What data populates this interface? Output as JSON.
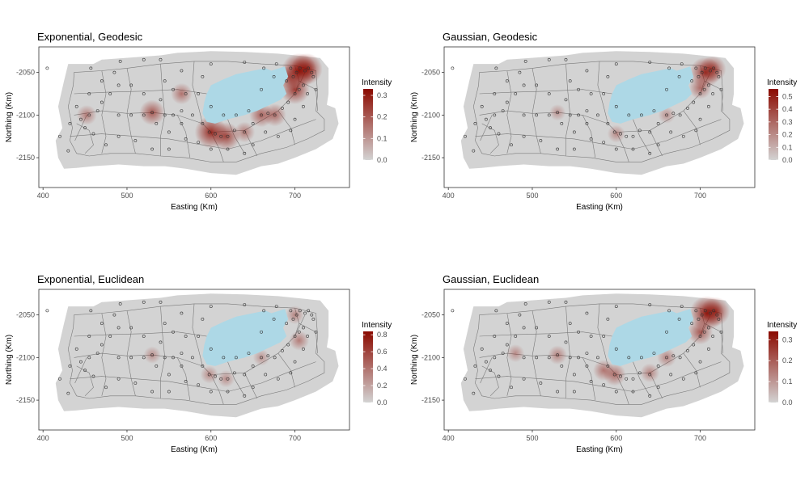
{
  "chart_data": [
    {
      "type": "heatmap",
      "title": "Exponential, Geodesic",
      "xlabel": "Easting (Km)",
      "ylabel": "Northing (Km)",
      "xlim": [
        395,
        765
      ],
      "ylim": [
        -2185,
        -2020
      ],
      "x_ticks": [
        400,
        500,
        600,
        700
      ],
      "y_ticks": [
        -2050,
        -2100,
        -2150
      ],
      "legend": {
        "title": "Intensity",
        "ticks": [
          0.0,
          0.1,
          0.2,
          0.3
        ],
        "tick_labels": [
          "0.0",
          "0.1",
          "0.2",
          "0.3"
        ],
        "max": 0.33,
        "position": "right"
      },
      "hotspots": [
        {
          "x": 705,
          "y": -2048,
          "v": 0.3
        },
        {
          "x": 714,
          "y": -2046,
          "v": 0.25
        },
        {
          "x": 700,
          "y": -2070,
          "v": 0.22
        },
        {
          "x": 600,
          "y": -2120,
          "v": 0.26
        },
        {
          "x": 618,
          "y": -2125,
          "v": 0.2
        },
        {
          "x": 530,
          "y": -2097,
          "v": 0.16
        },
        {
          "x": 660,
          "y": -2100,
          "v": 0.14
        },
        {
          "x": 676,
          "y": -2100,
          "v": 0.12
        },
        {
          "x": 565,
          "y": -2075,
          "v": 0.1
        },
        {
          "x": 452,
          "y": -2100,
          "v": 0.08
        },
        {
          "x": 640,
          "y": -2120,
          "v": 0.09
        },
        {
          "x": 693,
          "y": -2055,
          "v": 0.14
        }
      ]
    },
    {
      "type": "heatmap",
      "title": "Gaussian, Geodesic",
      "xlabel": "Easting (Km)",
      "ylabel": "Northing (Km)",
      "xlim": [
        395,
        765
      ],
      "ylim": [
        -2185,
        -2020
      ],
      "x_ticks": [
        400,
        500,
        600,
        700
      ],
      "y_ticks": [
        -2050,
        -2100,
        -2150
      ],
      "legend": {
        "title": "Intensity",
        "ticks": [
          0.0,
          0.1,
          0.2,
          0.3,
          0.4,
          0.5
        ],
        "tick_labels": [
          "0.0",
          "0.1",
          "0.2",
          "0.3",
          "0.4",
          "0.5"
        ],
        "max": 0.56,
        "position": "right"
      },
      "hotspots": [
        {
          "x": 706,
          "y": -2050,
          "v": 0.4
        },
        {
          "x": 715,
          "y": -2046,
          "v": 0.3
        },
        {
          "x": 700,
          "y": -2068,
          "v": 0.2
        },
        {
          "x": 600,
          "y": -2122,
          "v": 0.08
        },
        {
          "x": 660,
          "y": -2100,
          "v": 0.06
        },
        {
          "x": 530,
          "y": -2097,
          "v": 0.05
        }
      ]
    },
    {
      "type": "heatmap",
      "title": "Exponential, Euclidean",
      "xlabel": "Easting (Km)",
      "ylabel": "Northing (Km)",
      "xlim": [
        395,
        765
      ],
      "ylim": [
        -2185,
        -2020
      ],
      "x_ticks": [
        400,
        500,
        600,
        700
      ],
      "y_ticks": [
        -2050,
        -2100,
        -2150
      ],
      "legend": {
        "title": "Intensity",
        "ticks": [
          0.0,
          0.2,
          0.4,
          0.6,
          0.8
        ],
        "tick_labels": [
          "0.0",
          "0.2",
          "0.4",
          "0.6",
          "0.8"
        ],
        "max": 0.84,
        "position": "right"
      },
      "hotspots": [
        {
          "x": 700,
          "y": -2050,
          "v": 0.15
        },
        {
          "x": 598,
          "y": -2120,
          "v": 0.12
        },
        {
          "x": 618,
          "y": -2125,
          "v": 0.1
        },
        {
          "x": 530,
          "y": -2097,
          "v": 0.1
        },
        {
          "x": 660,
          "y": -2100,
          "v": 0.08
        },
        {
          "x": 705,
          "y": -2080,
          "v": 0.2
        }
      ]
    },
    {
      "type": "heatmap",
      "title": "Gaussian, Euclidean",
      "xlabel": "Easting (Km)",
      "ylabel": "Northing (Km)",
      "xlim": [
        395,
        765
      ],
      "ylim": [
        -2185,
        -2020
      ],
      "x_ticks": [
        400,
        500,
        600,
        700
      ],
      "y_ticks": [
        -2050,
        -2100,
        -2150
      ],
      "legend": {
        "title": "Intensity",
        "ticks": [
          0.0,
          0.1,
          0.2,
          0.3
        ],
        "tick_labels": [
          "0.0",
          "0.1",
          "0.2",
          "0.3"
        ],
        "max": 0.34,
        "position": "right"
      },
      "hotspots": [
        {
          "x": 708,
          "y": -2048,
          "v": 0.3
        },
        {
          "x": 718,
          "y": -2046,
          "v": 0.22
        },
        {
          "x": 700,
          "y": -2070,
          "v": 0.16
        },
        {
          "x": 598,
          "y": -2120,
          "v": 0.12
        },
        {
          "x": 585,
          "y": -2115,
          "v": 0.1
        },
        {
          "x": 530,
          "y": -2097,
          "v": 0.07
        },
        {
          "x": 660,
          "y": -2100,
          "v": 0.07
        },
        {
          "x": 640,
          "y": -2118,
          "v": 0.07
        },
        {
          "x": 480,
          "y": -2095,
          "v": 0.05
        }
      ]
    }
  ],
  "colors": {
    "background_gray": "#d3d3d3",
    "lake": "#add8e6",
    "low": "#d3d3d3",
    "high": "#8b0a00",
    "network": "#7a7a7a"
  },
  "points": [
    [
      405,
      -2045
    ],
    [
      457,
      -2045
    ],
    [
      485,
      -2050
    ],
    [
      492,
      -2037
    ],
    [
      520,
      -2035
    ],
    [
      540,
      -2035
    ],
    [
      565,
      -2048
    ],
    [
      545,
      -2060
    ],
    [
      490,
      -2065
    ],
    [
      505,
      -2065
    ],
    [
      520,
      -2075
    ],
    [
      480,
      -2075
    ],
    [
      470,
      -2085
    ],
    [
      465,
      -2095
    ],
    [
      455,
      -2100
    ],
    [
      445,
      -2105
    ],
    [
      450,
      -2115
    ],
    [
      460,
      -2122
    ],
    [
      490,
      -2100
    ],
    [
      505,
      -2100
    ],
    [
      520,
      -2100
    ],
    [
      530,
      -2097
    ],
    [
      545,
      -2100
    ],
    [
      555,
      -2100
    ],
    [
      565,
      -2095
    ],
    [
      570,
      -2075
    ],
    [
      555,
      -2070
    ],
    [
      540,
      -2082
    ],
    [
      535,
      -2110
    ],
    [
      550,
      -2120
    ],
    [
      565,
      -2110
    ],
    [
      578,
      -2100
    ],
    [
      590,
      -2110
    ],
    [
      598,
      -2120
    ],
    [
      605,
      -2122
    ],
    [
      612,
      -2125
    ],
    [
      620,
      -2125
    ],
    [
      628,
      -2118
    ],
    [
      640,
      -2120
    ],
    [
      650,
      -2110
    ],
    [
      660,
      -2100
    ],
    [
      668,
      -2098
    ],
    [
      676,
      -2100
    ],
    [
      685,
      -2092
    ],
    [
      692,
      -2085
    ],
    [
      700,
      -2075
    ],
    [
      705,
      -2070
    ],
    [
      710,
      -2065
    ],
    [
      698,
      -2055
    ],
    [
      702,
      -2050
    ],
    [
      706,
      -2045
    ],
    [
      712,
      -2048
    ],
    [
      716,
      -2045
    ],
    [
      720,
      -2050
    ],
    [
      722,
      -2055
    ],
    [
      695,
      -2045
    ],
    [
      690,
      -2060
    ],
    [
      678,
      -2040
    ],
    [
      640,
      -2038
    ],
    [
      600,
      -2040
    ],
    [
      590,
      -2055
    ],
    [
      585,
      -2075
    ],
    [
      600,
      -2090
    ],
    [
      615,
      -2100
    ],
    [
      630,
      -2100
    ],
    [
      645,
      -2095
    ],
    [
      665,
      -2120
    ],
    [
      650,
      -2135
    ],
    [
      640,
      -2145
    ],
    [
      620,
      -2140
    ],
    [
      600,
      -2140
    ],
    [
      585,
      -2132
    ],
    [
      570,
      -2128
    ],
    [
      550,
      -2140
    ],
    [
      530,
      -2140
    ],
    [
      510,
      -2130
    ],
    [
      490,
      -2125
    ],
    [
      475,
      -2135
    ],
    [
      430,
      -2142
    ],
    [
      420,
      -2125
    ],
    [
      432,
      -2110
    ],
    [
      440,
      -2090
    ],
    [
      455,
      -2075
    ],
    [
      470,
      -2060
    ],
    [
      680,
      -2125
    ],
    [
      695,
      -2118
    ],
    [
      700,
      -2105
    ],
    [
      710,
      -2090
    ],
    [
      715,
      -2075
    ],
    [
      725,
      -2070
    ],
    [
      675,
      -2055
    ],
    [
      660,
      -2070
    ],
    [
      663,
      -2045
    ]
  ]
}
